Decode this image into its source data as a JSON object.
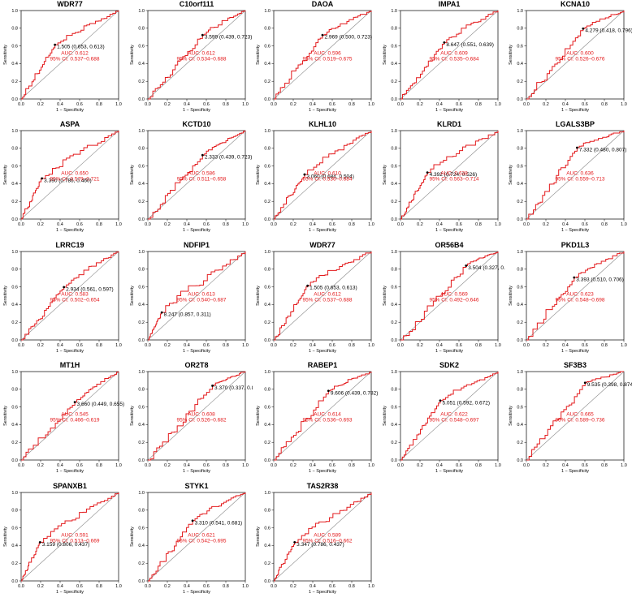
{
  "colors": {
    "roc": "#e31a1c",
    "diagonal": "#888888",
    "text_red": "#e31a1c",
    "axis": "#000000"
  },
  "chart_data": [
    {
      "type": "line",
      "title": "WDR77",
      "xlabel": "1 − Specificity",
      "ylabel": "Sensitivity",
      "xlim": [
        0,
        1
      ],
      "ylim": [
        0,
        1
      ],
      "ticks": [
        "0.0",
        "0.2",
        "0.4",
        "0.6",
        "0.8",
        "1.0"
      ],
      "threshold": {
        "label": "1.505 (0.653, 0.613)",
        "x": 0.347,
        "y": 0.613
      },
      "auc_label": "AUC: 0.612",
      "ci_label": "95% CI: 0.537–0.688",
      "seed": 1
    },
    {
      "type": "line",
      "title": "C10orf111",
      "xlabel": "1 − Specificity",
      "ylabel": "Sensitivity",
      "xlim": [
        0,
        1
      ],
      "ylim": [
        0,
        1
      ],
      "ticks": [
        "0.0",
        "0.2",
        "0.4",
        "0.6",
        "0.8",
        "1.0"
      ],
      "threshold": {
        "label": "3.599 (0.439, 0.723)",
        "x": 0.561,
        "y": 0.723
      },
      "auc_label": "AUC: 0.612",
      "ci_label": "95% CI: 0.534–0.688",
      "seed": 2
    },
    {
      "type": "line",
      "title": "DAOA",
      "xlabel": "1 − Specificity",
      "ylabel": "Sensitivity",
      "xlim": [
        0,
        1
      ],
      "ylim": [
        0,
        1
      ],
      "ticks": [
        "0.0",
        "0.2",
        "0.4",
        "0.6",
        "0.8",
        "1.0"
      ],
      "threshold": {
        "label": "2.969 (0.500, 0.723)",
        "x": 0.5,
        "y": 0.723
      },
      "auc_label": "AUC: 0.596",
      "ci_label": "95% CI: 0.519–0.675",
      "seed": 3
    },
    {
      "type": "line",
      "title": "IMPA1",
      "xlabel": "1 − Specificity",
      "ylabel": "Sensitivity",
      "xlim": [
        0,
        1
      ],
      "ylim": [
        0,
        1
      ],
      "ticks": [
        "0.0",
        "0.2",
        "0.4",
        "0.6",
        "0.8",
        "1.0"
      ],
      "threshold": {
        "label": "8.647 (0.551, 0.639)",
        "x": 0.449,
        "y": 0.639
      },
      "auc_label": "AUC: 0.609",
      "ci_label": "95% CI: 0.535–0.684",
      "seed": 4
    },
    {
      "type": "line",
      "title": "KCNA10",
      "xlabel": "1 − Specificity",
      "ylabel": "Sensitivity",
      "xlim": [
        0,
        1
      ],
      "ylim": [
        0,
        1
      ],
      "ticks": [
        "0.0",
        "0.2",
        "0.4",
        "0.6",
        "0.8",
        "1.0"
      ],
      "threshold": {
        "label": "4.279 (0.418, 0.796)",
        "x": 0.582,
        "y": 0.796
      },
      "auc_label": "AUC: 0.600",
      "ci_label": "95% CI: 0.526–0.676",
      "seed": 5
    },
    {
      "type": "line",
      "title": "ASPA",
      "xlabel": "1 − Specificity",
      "ylabel": "Sensitivity",
      "xlim": [
        0,
        1
      ],
      "ylim": [
        0,
        1
      ],
      "ticks": [
        "0.0",
        "0.2",
        "0.4",
        "0.6",
        "0.8",
        "1.0"
      ],
      "threshold": {
        "label": "3.390 (0.786, 0.460)",
        "x": 0.214,
        "y": 0.46
      },
      "auc_label": "AUC: 0.650",
      "ci_label": "95% CI: 0.579–0.721",
      "seed": 6
    },
    {
      "type": "line",
      "title": "KCTD10",
      "xlabel": "1 − Specificity",
      "ylabel": "Sensitivity",
      "xlim": [
        0,
        1
      ],
      "ylim": [
        0,
        1
      ],
      "ticks": [
        "0.0",
        "0.2",
        "0.4",
        "0.6",
        "0.8",
        "1.0"
      ],
      "threshold": {
        "label": "2.333 (0.439, 0.723)",
        "x": 0.561,
        "y": 0.723
      },
      "auc_label": "AUC: 0.586",
      "ci_label": "95% CI: 0.511–0.658",
      "seed": 7
    },
    {
      "type": "line",
      "title": "KLHL10",
      "xlabel": "1 − Specificity",
      "ylabel": "Sensitivity",
      "xlim": [
        0,
        1
      ],
      "ylim": [
        0,
        1
      ],
      "ticks": [
        "0.0",
        "0.2",
        "0.4",
        "0.6",
        "0.8",
        "1.0"
      ],
      "threshold": {
        "label": "3.060 (0.684, 0.504)",
        "x": 0.316,
        "y": 0.504
      },
      "auc_label": "AUC: 0.610",
      "ci_label": "95% CI: 0.536–0.684",
      "seed": 8
    },
    {
      "type": "line",
      "title": "KLRD1",
      "xlabel": "1 − Specificity",
      "ylabel": "Sensitivity",
      "xlim": [
        0,
        1
      ],
      "ylim": [
        0,
        1
      ],
      "ticks": [
        "0.0",
        "0.2",
        "0.4",
        "0.6",
        "0.8",
        "1.0"
      ],
      "threshold": {
        "label": "4.392 (0.724, 0.526)",
        "x": 0.276,
        "y": 0.526
      },
      "auc_label": "AUC: 0.638",
      "ci_label": "95% CI: 0.563–0.714",
      "seed": 9
    },
    {
      "type": "line",
      "title": "LGALS3BP",
      "xlabel": "1 − Specificity",
      "ylabel": "Sensitivity",
      "xlim": [
        0,
        1
      ],
      "ylim": [
        0,
        1
      ],
      "ticks": [
        "0.0",
        "0.2",
        "0.4",
        "0.6",
        "0.8",
        "1.0"
      ],
      "threshold": {
        "label": "7.332 (0.480, 0.807)",
        "x": 0.52,
        "y": 0.807
      },
      "auc_label": "AUC: 0.636",
      "ci_label": "95% CI: 0.559–0.713",
      "seed": 10
    },
    {
      "type": "line",
      "title": "LRRC19",
      "xlabel": "1 − Specificity",
      "ylabel": "Sensitivity",
      "xlim": [
        0,
        1
      ],
      "ylim": [
        0,
        1
      ],
      "ticks": [
        "0.0",
        "0.2",
        "0.4",
        "0.6",
        "0.8",
        "1.0"
      ],
      "threshold": {
        "label": "2.934 (0.561, 0.597)",
        "x": 0.439,
        "y": 0.597
      },
      "auc_label": "AUC: 0.583",
      "ci_label": "95% CI: 0.502–0.654",
      "seed": 11
    },
    {
      "type": "line",
      "title": "NDFIP1",
      "xlabel": "1 − Specificity",
      "ylabel": "Sensitivity",
      "xlim": [
        0,
        1
      ],
      "ylim": [
        0,
        1
      ],
      "ticks": [
        "0.0",
        "0.2",
        "0.4",
        "0.6",
        "0.8",
        "1.0"
      ],
      "threshold": {
        "label": "8.247 (0.857, 0.311)",
        "x": 0.143,
        "y": 0.311
      },
      "auc_label": "AUC: 0.613",
      "ci_label": "95% CI: 0.540–0.687",
      "seed": 12
    },
    {
      "type": "line",
      "title": "WDR77",
      "xlabel": "1 − Specificity",
      "ylabel": "Sensitivity",
      "xlim": [
        0,
        1
      ],
      "ylim": [
        0,
        1
      ],
      "ticks": [
        "0.0",
        "0.2",
        "0.4",
        "0.6",
        "0.8",
        "1.0"
      ],
      "threshold": {
        "label": "1.505 (0.653, 0.613)",
        "x": 0.347,
        "y": 0.613
      },
      "auc_label": "AUC: 0.612",
      "ci_label": "95% CI: 0.537–0.688",
      "seed": 13
    },
    {
      "type": "line",
      "title": "OR56B4",
      "xlabel": "1 − Specificity",
      "ylabel": "Sensitivity",
      "xlim": [
        0,
        1
      ],
      "ylim": [
        0,
        1
      ],
      "ticks": [
        "0.0",
        "0.2",
        "0.4",
        "0.6",
        "0.8",
        "1.0"
      ],
      "threshold": {
        "label": "3.504 (0.327, 0.8",
        "x": 0.673,
        "y": 0.84
      },
      "auc_label": "AUC: 0.569",
      "ci_label": "95% CI: 0.492–0.646",
      "seed": 14
    },
    {
      "type": "line",
      "title": "PKD1L3",
      "xlabel": "1 − Specificity",
      "ylabel": "Sensitivity",
      "xlim": [
        0,
        1
      ],
      "ylim": [
        0,
        1
      ],
      "ticks": [
        "0.0",
        "0.2",
        "0.4",
        "0.6",
        "0.8",
        "1.0"
      ],
      "threshold": {
        "label": "3.393 (0.510, 0.706)",
        "x": 0.49,
        "y": 0.706
      },
      "auc_label": "AUC: 0.623",
      "ci_label": "95% CI: 0.548–0.698",
      "seed": 15
    },
    {
      "type": "line",
      "title": "MT1H",
      "xlabel": "1 − Specificity",
      "ylabel": "Sensitivity",
      "xlim": [
        0,
        1
      ],
      "ylim": [
        0,
        1
      ],
      "ticks": [
        "0.0",
        "0.2",
        "0.4",
        "0.6",
        "0.8",
        "1.0"
      ],
      "threshold": {
        "label": "3.660 (0.449, 0.655)",
        "x": 0.551,
        "y": 0.655
      },
      "auc_label": "AUC: 0.545",
      "ci_label": "95% CI: 0.466–0.619",
      "seed": 16
    },
    {
      "type": "line",
      "title": "OR2T8",
      "xlabel": "1 − Specificity",
      "ylabel": "Sensitivity",
      "xlim": [
        0,
        1
      ],
      "ylim": [
        0,
        1
      ],
      "ticks": [
        "0.0",
        "0.2",
        "0.4",
        "0.6",
        "0.8",
        "1.0"
      ],
      "threshold": {
        "label": "3.370 (0.337, 0.8",
        "x": 0.663,
        "y": 0.84
      },
      "auc_label": "AUC: 0.608",
      "ci_label": "95% CI: 0.526–0.682",
      "seed": 17
    },
    {
      "type": "line",
      "title": "RABEP1",
      "xlabel": "1 − Specificity",
      "ylabel": "Sensitivity",
      "xlim": [
        0,
        1
      ],
      "ylim": [
        0,
        1
      ],
      "ticks": [
        "0.0",
        "0.2",
        "0.4",
        "0.6",
        "0.8",
        "1.0"
      ],
      "threshold": {
        "label": "9.606 (0.439, 0.782)",
        "x": 0.561,
        "y": 0.782
      },
      "auc_label": "AUC: 0.614",
      "ci_label": "95% CI: 0.536–0.693",
      "seed": 18
    },
    {
      "type": "line",
      "title": "SDK2",
      "xlabel": "1 − Specificity",
      "ylabel": "Sensitivity",
      "xlim": [
        0,
        1
      ],
      "ylim": [
        0,
        1
      ],
      "ticks": [
        "0.0",
        "0.2",
        "0.4",
        "0.6",
        "0.8",
        "1.0"
      ],
      "threshold": {
        "label": "5.051 (0.592, 0.672)",
        "x": 0.408,
        "y": 0.672
      },
      "auc_label": "AUC: 0.622",
      "ci_label": "95% CI: 0.548–0.697",
      "seed": 19
    },
    {
      "type": "line",
      "title": "SF3B3",
      "xlabel": "1 − Specificity",
      "ylabel": "Sensitivity",
      "xlim": [
        0,
        1
      ],
      "ylim": [
        0,
        1
      ],
      "ticks": [
        "0.0",
        "0.2",
        "0.4",
        "0.6",
        "0.8",
        "1.0"
      ],
      "threshold": {
        "label": "9.535 (0.398, 0.874)",
        "x": 0.602,
        "y": 0.874
      },
      "auc_label": "AUC: 0.665",
      "ci_label": "95% CI: 0.589–0.736",
      "seed": 20
    },
    {
      "type": "line",
      "title": "SPANXB1",
      "xlabel": "1 − Specificity",
      "ylabel": "Sensitivity",
      "xlim": [
        0,
        1
      ],
      "ylim": [
        0,
        1
      ],
      "ticks": [
        "0.0",
        "0.2",
        "0.4",
        "0.6",
        "0.8",
        "1.0"
      ],
      "threshold": {
        "label": "3.159 (0.806, 0.437)",
        "x": 0.194,
        "y": 0.437
      },
      "auc_label": "AUC: 0.591",
      "ci_label": "95% CI: 0.513–0.669",
      "seed": 21
    },
    {
      "type": "line",
      "title": "STYK1",
      "xlabel": "1 − Specificity",
      "ylabel": "Sensitivity",
      "xlim": [
        0,
        1
      ],
      "ylim": [
        0,
        1
      ],
      "ticks": [
        "0.0",
        "0.2",
        "0.4",
        "0.6",
        "0.8",
        "1.0"
      ],
      "threshold": {
        "label": "3.310 (0.541, 0.681)",
        "x": 0.459,
        "y": 0.681
      },
      "auc_label": "AUC: 0.621",
      "ci_label": "95% CI: 0.542–0.695",
      "seed": 22
    },
    {
      "type": "line",
      "title": "TAS2R38",
      "xlabel": "1 − Specificity",
      "ylabel": "Sensitivity",
      "xlim": [
        0,
        1
      ],
      "ylim": [
        0,
        1
      ],
      "ticks": [
        "0.0",
        "0.2",
        "0.4",
        "0.6",
        "0.8",
        "1.0"
      ],
      "threshold": {
        "label": "3.347 (0.786, 0.437)",
        "x": 0.214,
        "y": 0.437
      },
      "auc_label": "AUC: 0.589",
      "ci_label": "95% CI: 0.516–0.662",
      "seed": 23
    }
  ]
}
